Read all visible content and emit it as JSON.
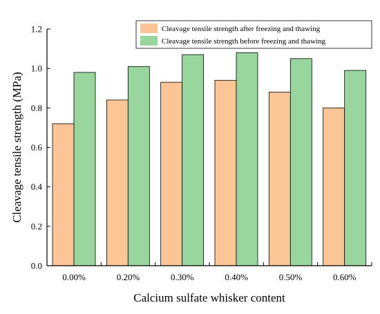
{
  "chart_data": {
    "type": "bar",
    "title": "",
    "xlabel": "Calcium sulfate whisker content",
    "ylabel": "Cleavage tensile strength (MPa)",
    "categories": [
      "0.00%",
      "0.20%",
      "0.30%",
      "0.40%",
      "0.50%",
      "0.60%"
    ],
    "series": [
      {
        "name": "Cleavage tensile strength after freezing and thawing",
        "color": "#fbc596",
        "values": [
          0.72,
          0.84,
          0.93,
          0.94,
          0.88,
          0.8
        ]
      },
      {
        "name": "Cleavage tensile strength before freezing and thawing",
        "color": "#98d69e",
        "values": [
          0.98,
          1.01,
          1.07,
          1.08,
          1.05,
          0.99
        ]
      }
    ],
    "ylim": [
      0,
      1.2
    ],
    "yticks": [
      "0.0",
      "0.2",
      "0.4",
      "0.6",
      "0.8",
      "1.0",
      "1.2"
    ],
    "grid": false,
    "legend_position": "top-right"
  }
}
